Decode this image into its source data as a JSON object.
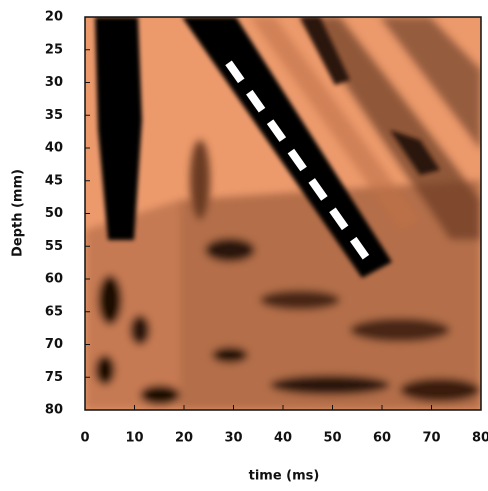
{
  "chart_data": {
    "type": "image",
    "x_label": "time (ms)",
    "y_label": "Depth (mm)",
    "xlim": [
      0,
      80
    ],
    "xticks": [
      0,
      10,
      20,
      30,
      40,
      50,
      60,
      70,
      80
    ],
    "ylim": [
      80,
      20
    ],
    "yticks": [
      20,
      25,
      30,
      35,
      40,
      45,
      50,
      55,
      60,
      65,
      70,
      75,
      80
    ],
    "lines": [
      {
        "x": [
          29,
          58
        ],
        "y": [
          27,
          58
        ],
        "color": "#ffffff",
        "style": "dashed"
      }
    ]
  }
}
